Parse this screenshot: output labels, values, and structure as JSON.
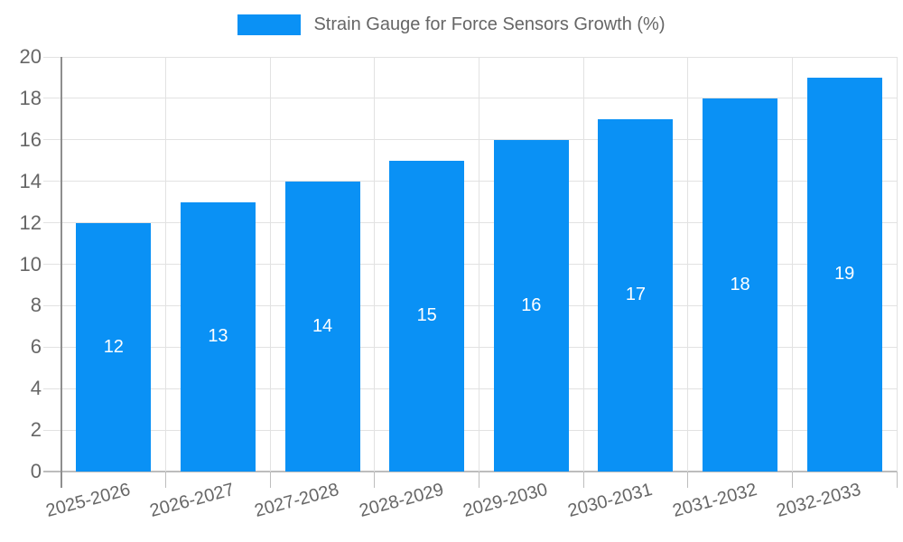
{
  "chart_data": {
    "type": "bar",
    "title": "Strain Gauge for Force Sensors Growth (%)",
    "categories": [
      "2025-2026",
      "2026-2027",
      "2027-2028",
      "2028-2029",
      "2029-2030",
      "2030-2031",
      "2031-2032",
      "2032-2033"
    ],
    "values": [
      12,
      13,
      14,
      15,
      16,
      17,
      18,
      19
    ],
    "xlabel": "",
    "ylabel": "",
    "ylim": [
      0,
      20
    ],
    "ytick_step": 2,
    "yticks": [
      0,
      2,
      4,
      6,
      8,
      10,
      12,
      14,
      16,
      18,
      20
    ],
    "grid": true,
    "legend_position": "top-center",
    "x_label_rotation_deg": -15,
    "colors": {
      "bar": "#0a91f5",
      "bar_value_label": "#ffffff",
      "tick_text": "#666666",
      "legend_text": "#666666",
      "gridline": "#e2e2e2",
      "y_axis_line": "#8e8e8e",
      "x_axis_line": "#bdbdbd",
      "background": "#ffffff"
    }
  }
}
